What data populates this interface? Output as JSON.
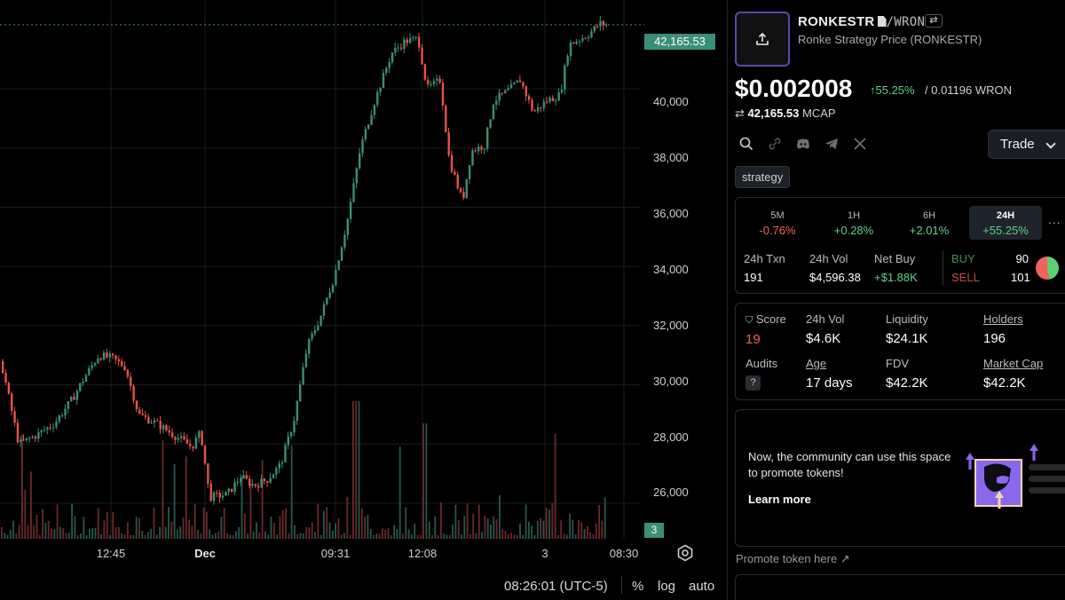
{
  "chart": {
    "price_tag": "42,165.53",
    "volume_tag": "3",
    "y_ticks": [
      "40,000",
      "38,000",
      "36,000",
      "34,000",
      "32,000",
      "30,000",
      "28,000",
      "26,000"
    ],
    "x_ticks": [
      "12:45",
      "Dec",
      "09:31",
      "12:08",
      "3",
      "08:30"
    ],
    "clock": "08:26:01 (UTC-5)",
    "pct_label": "%",
    "log_label": "log",
    "auto_label": "auto",
    "colors": {
      "up": "#3a8f77",
      "down": "#e5534b"
    }
  },
  "chart_data": {
    "type": "candlestick",
    "ylim": [
      24800,
      43000
    ],
    "last_price": 42165.53,
    "close_points": [
      [
        0,
        30800
      ],
      [
        20,
        28000
      ],
      [
        40,
        28300
      ],
      [
        60,
        28700
      ],
      [
        80,
        29500
      ],
      [
        95,
        30300
      ],
      [
        110,
        31000
      ],
      [
        125,
        30900
      ],
      [
        140,
        30600
      ],
      [
        155,
        29000
      ],
      [
        175,
        28700
      ],
      [
        195,
        28300
      ],
      [
        215,
        27900
      ],
      [
        225,
        28400
      ],
      [
        235,
        26200
      ],
      [
        255,
        26300
      ],
      [
        270,
        26900
      ],
      [
        285,
        26600
      ],
      [
        300,
        26800
      ],
      [
        315,
        27300
      ],
      [
        330,
        28800
      ],
      [
        345,
        31300
      ],
      [
        360,
        32300
      ],
      [
        375,
        33600
      ],
      [
        390,
        35500
      ],
      [
        405,
        38000
      ],
      [
        420,
        39500
      ],
      [
        440,
        41200
      ],
      [
        455,
        41600
      ],
      [
        470,
        41700
      ],
      [
        480,
        40000
      ],
      [
        495,
        40300
      ],
      [
        505,
        37600
      ],
      [
        520,
        36200
      ],
      [
        530,
        37900
      ],
      [
        545,
        38100
      ],
      [
        555,
        39600
      ],
      [
        570,
        39900
      ],
      [
        585,
        40300
      ],
      [
        600,
        39200
      ],
      [
        615,
        39600
      ],
      [
        630,
        39800
      ],
      [
        640,
        41500
      ],
      [
        660,
        41800
      ],
      [
        675,
        42200
      ],
      [
        683,
        42165
      ]
    ]
  },
  "panel": {
    "symbol": "RONKESTR",
    "quote": "/WRON",
    "swap_icon": "⇄",
    "full_name": "Ronke Strategy Price (RONKESTR)",
    "price": "$0.002008",
    "change": "↑55.25%",
    "price_wron": "/  0.01196 WRON",
    "mcap_value": "42,165.53",
    "mcap_label": "MCAP",
    "trade_label": "Trade",
    "tag": "strategy",
    "timeframes": [
      {
        "label": "5M",
        "value": "-0.76%",
        "dir": "neg"
      },
      {
        "label": "1H",
        "value": "+0.28%",
        "dir": "pos"
      },
      {
        "label": "6H",
        "value": "+2.01%",
        "dir": "pos"
      },
      {
        "label": "24H",
        "value": "+55.25%",
        "dir": "pos"
      }
    ],
    "more": "...",
    "txn_label": "24h Txn",
    "txn_value": "191",
    "vol_label": "24h Vol",
    "vol_value": "$4,596.38",
    "netbuy_label": "Net Buy",
    "netbuy_value": "+$1.88K",
    "buy_label": "BUY",
    "buy_value": "90",
    "sell_label": "SELL",
    "sell_value": "101",
    "buy_fraction": 0.47,
    "score_label": "Score",
    "score_value": "19",
    "vol2_label": "24h Vol",
    "vol2_value": "$4.6K",
    "liq_label": "Liquidity",
    "liq_value": "$24.1K",
    "holders_label": "Holders",
    "holders_value": "196",
    "audits_label": "Audits",
    "audits_value": "?",
    "age_label": "Age",
    "age_value": "17 days",
    "fdv_label": "FDV",
    "fdv_value": "$42.2K",
    "mcap2_label": "Market Cap",
    "mcap2_value": "$42.2K",
    "promo_text": "Now, the community can use this space to promote tokens!",
    "promo_learn": "Learn more",
    "promote_link": "Promote token here ↗"
  }
}
